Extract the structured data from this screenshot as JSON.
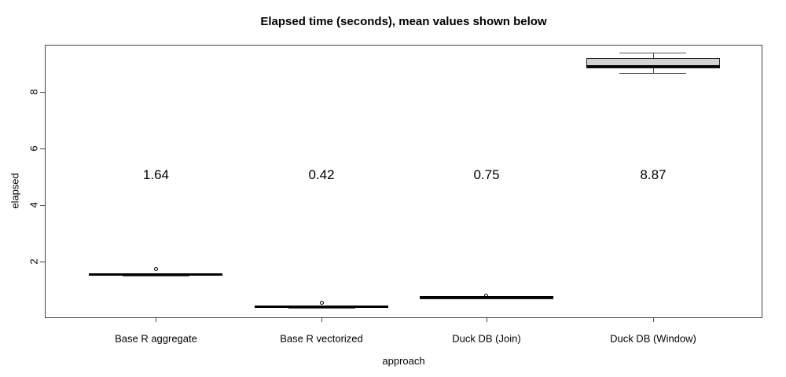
{
  "title": "Elapsed time (seconds), mean values shown below",
  "axes": {
    "xlabel": "approach",
    "ylabel": "elapsed",
    "ytick_labels": [
      "2",
      "4",
      "6",
      "8"
    ]
  },
  "colors": {
    "box_fill": "#d3d3d3",
    "box_border": "#222222",
    "median": "#000000",
    "axis": "#444444",
    "background": "#ffffff"
  },
  "chart_data": {
    "type": "boxplot",
    "title": "Elapsed time (seconds), mean values shown below",
    "xlabel": "approach",
    "ylabel": "elapsed",
    "categories": [
      "Base R aggregate",
      "Base R vectorized",
      "Duck DB (Join)",
      "Duck DB (Window)"
    ],
    "means": [
      1.64,
      0.42,
      0.75,
      8.87
    ],
    "mean_labels": [
      "1.64",
      "0.42",
      "0.75",
      "8.87"
    ],
    "yticks": [
      2,
      4,
      6,
      8
    ],
    "ylim": [
      0,
      9.65
    ],
    "grid": false,
    "legend": false,
    "series": [
      {
        "name": "Base R aggregate",
        "whisker_low": 1.5,
        "q1": 1.52,
        "median": 1.54,
        "q3": 1.56,
        "whisker_high": 1.58,
        "outliers": [
          1.72
        ]
      },
      {
        "name": "Base R vectorized",
        "whisker_low": 0.36,
        "q1": 0.38,
        "median": 0.39,
        "q3": 0.4,
        "whisker_high": 0.42,
        "outliers": [
          0.54
        ]
      },
      {
        "name": "Duck DB (Join)",
        "whisker_low": 0.68,
        "q1": 0.7,
        "median": 0.71,
        "q3": 0.72,
        "whisker_high": 0.74,
        "outliers": [
          0.78
        ]
      },
      {
        "name": "Duck DB (Window)",
        "whisker_low": 8.66,
        "q1": 8.83,
        "median": 8.9,
        "q3": 9.18,
        "whisker_high": 9.38,
        "outliers": []
      }
    ]
  }
}
